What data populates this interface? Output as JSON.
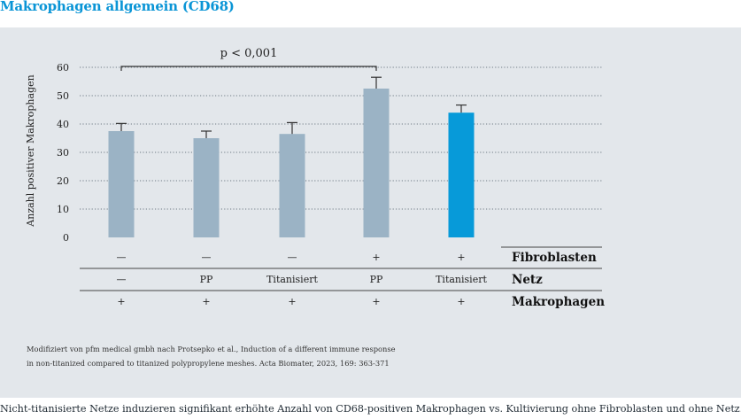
{
  "title": "Makrophagen allgemein (CD68)",
  "caption": "Nicht-titanisierte Netze induzieren signifikant erhöhte Anzahl von CD68-positiven Makrophagen vs. Kultivierung ohne Fibroblasten und ohne Netz.",
  "source_line1": "Modifiziert von pfm medical gmbh nach Protsepko et al., Induction of a different immune response",
  "source_line2": "in non-titanized compared to titanized polypropylene meshes. Acta Biomater, 2023, 169: 363-371",
  "colors": {
    "bar": "#9bb3c5",
    "highlight": "#079ad9",
    "title": "#0a95d6",
    "panel": "#e3e7eb"
  },
  "chart_data": {
    "type": "bar",
    "ylabel": "Anzahl positiver Makrophagen",
    "ylim": [
      0,
      60
    ],
    "yticks": [
      0,
      10,
      20,
      30,
      40,
      50,
      60
    ],
    "grid": true,
    "values": [
      37.5,
      35,
      36.5,
      52.5,
      44
    ],
    "errors": [
      2.7,
      2.5,
      4,
      4,
      2.7
    ],
    "highlight": [
      false,
      false,
      false,
      false,
      true
    ],
    "significance": {
      "label": "p < 0,001",
      "from": 0,
      "to": 3
    },
    "table": [
      {
        "label": "Fibroblasten",
        "values": [
          "—",
          "—",
          "—",
          "+",
          "+"
        ]
      },
      {
        "label": "Netz",
        "values": [
          "—",
          "PP",
          "Titanisiert",
          "PP",
          "Titanisiert"
        ]
      },
      {
        "label": "Makrophagen",
        "values": [
          "+",
          "+",
          "+",
          "+",
          "+"
        ]
      }
    ]
  }
}
